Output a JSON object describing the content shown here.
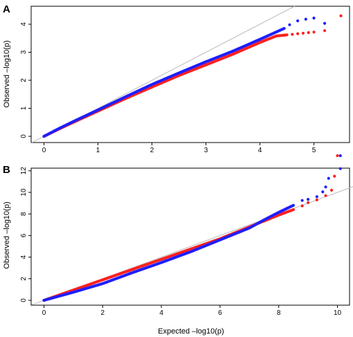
{
  "chart_data": [
    {
      "panel_label": "A",
      "type": "scatter",
      "xlabel": "",
      "ylabel": "Observed –log10(p)",
      "xlim": [
        0,
        5.7
      ],
      "ylim": [
        0,
        4.5
      ],
      "xticks": [
        "0",
        "1",
        "2",
        "3",
        "4",
        "5"
      ],
      "yticks": [
        "0",
        "1",
        "2",
        "3",
        "4"
      ],
      "reference_line": {
        "slope": 1,
        "intercept": 0,
        "color": "#bbbbbb"
      },
      "series": [
        {
          "color": "#ff2020",
          "points": [
            [
              0,
              0
            ],
            [
              0.3,
              0.28
            ],
            [
              0.6,
              0.55
            ],
            [
              1,
              0.9
            ],
            [
              1.5,
              1.34
            ],
            [
              2,
              1.76
            ],
            [
              2.5,
              2.17
            ],
            [
              3,
              2.55
            ],
            [
              3.5,
              2.93
            ],
            [
              4,
              3.35
            ],
            [
              4.3,
              3.58
            ],
            [
              4.5,
              3.62
            ],
            [
              4.6,
              3.64
            ],
            [
              4.7,
              3.66
            ],
            [
              4.8,
              3.68
            ],
            [
              4.9,
              3.7
            ],
            [
              5.0,
              3.72
            ],
            [
              5.2,
              3.77
            ],
            [
              5.5,
              4.3
            ]
          ]
        },
        {
          "color": "#1f1fff",
          "points": [
            [
              0,
              0
            ],
            [
              0.3,
              0.3
            ],
            [
              0.6,
              0.58
            ],
            [
              1,
              0.94
            ],
            [
              1.5,
              1.4
            ],
            [
              2,
              1.85
            ],
            [
              2.5,
              2.26
            ],
            [
              3,
              2.66
            ],
            [
              3.5,
              3.04
            ],
            [
              4,
              3.46
            ],
            [
              4.3,
              3.72
            ],
            [
              4.45,
              3.85
            ],
            [
              4.55,
              3.98
            ],
            [
              4.7,
              4.12
            ],
            [
              4.85,
              4.18
            ],
            [
              5.0,
              4.22
            ],
            [
              5.2,
              4.03
            ]
          ]
        }
      ]
    },
    {
      "panel_label": "B",
      "type": "scatter",
      "xlabel": "Expected –log10(p)",
      "ylabel": "Observed –log10(p)",
      "xlim": [
        0,
        10.3
      ],
      "ylim": [
        0,
        13.3
      ],
      "xticks": [
        "0",
        "2",
        "4",
        "6",
        "8",
        "10"
      ],
      "yticks": [
        "0",
        "2",
        "4",
        "6",
        "8",
        "10",
        "12"
      ],
      "reference_line": {
        "slope": 1,
        "intercept": 0,
        "color": "#bbbbbb"
      },
      "series": [
        {
          "color": "#ff2020",
          "points": [
            [
              0,
              0
            ],
            [
              1,
              0.95
            ],
            [
              2,
              1.9
            ],
            [
              3,
              2.85
            ],
            [
              4,
              3.8
            ],
            [
              5,
              4.75
            ],
            [
              6,
              5.7
            ],
            [
              7,
              6.8
            ],
            [
              7.5,
              7.35
            ],
            [
              8,
              7.9
            ],
            [
              8.5,
              8.4
            ],
            [
              8.8,
              8.75
            ],
            [
              9,
              9.05
            ],
            [
              9.3,
              9.3
            ],
            [
              9.6,
              9.7
            ],
            [
              9.8,
              10.2
            ],
            [
              9.9,
              11.5
            ],
            [
              10.0,
              13.4
            ]
          ]
        },
        {
          "color": "#1f1fff",
          "points": [
            [
              0,
              0
            ],
            [
              1,
              0.75
            ],
            [
              2,
              1.55
            ],
            [
              3,
              2.55
            ],
            [
              4,
              3.5
            ],
            [
              5,
              4.5
            ],
            [
              6,
              5.6
            ],
            [
              7,
              6.7
            ],
            [
              7.5,
              7.45
            ],
            [
              8,
              8.15
            ],
            [
              8.5,
              8.8
            ],
            [
              8.8,
              9.25
            ],
            [
              9,
              9.35
            ],
            [
              9.3,
              9.6
            ],
            [
              9.5,
              10.05
            ],
            [
              9.6,
              10.5
            ],
            [
              9.7,
              11.3
            ],
            [
              10.1,
              12.2
            ],
            [
              10.1,
              13.4
            ]
          ]
        }
      ]
    }
  ]
}
